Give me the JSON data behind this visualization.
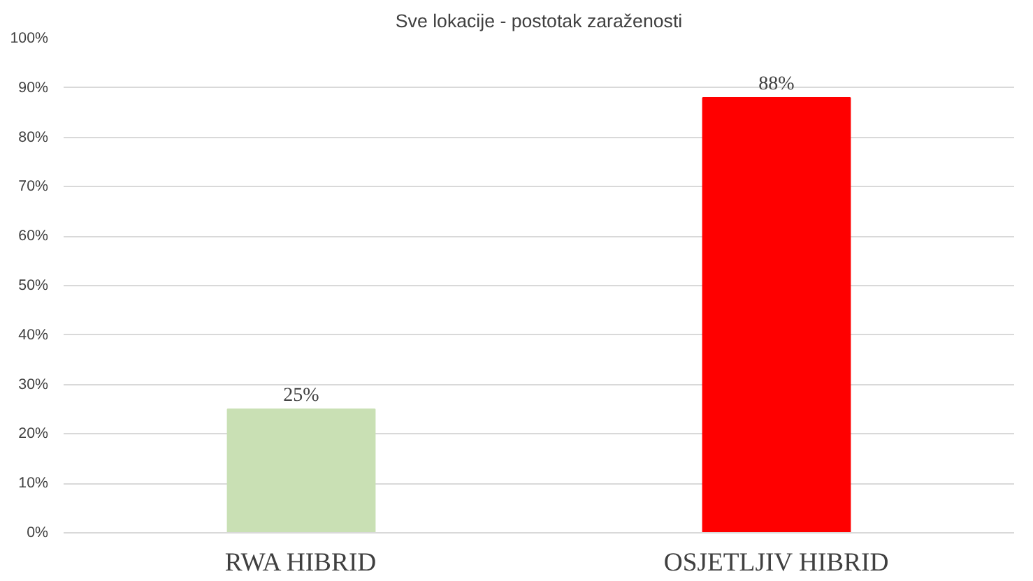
{
  "chart_data": {
    "type": "bar",
    "title": "Sve lokacije - postotak zaraženosti",
    "categories": [
      "RWA HIBRID",
      "OSJETLJIV HIBRID"
    ],
    "values": [
      25,
      88
    ],
    "colors": [
      "#c9e0b4",
      "#ff0000"
    ],
    "value_labels": [
      "25%",
      "88%"
    ],
    "ylim": [
      0,
      100
    ],
    "yticks": [
      {
        "value": 0,
        "label": "0%"
      },
      {
        "value": 10,
        "label": "10%"
      },
      {
        "value": 20,
        "label": "20%"
      },
      {
        "value": 30,
        "label": "30%"
      },
      {
        "value": 40,
        "label": "40%"
      },
      {
        "value": 50,
        "label": "50%"
      },
      {
        "value": 60,
        "label": "60%"
      },
      {
        "value": 70,
        "label": "70%"
      },
      {
        "value": 80,
        "label": "80%"
      },
      {
        "value": 90,
        "label": "90%"
      },
      {
        "value": 100,
        "label": "100%"
      }
    ],
    "grid": "y"
  }
}
